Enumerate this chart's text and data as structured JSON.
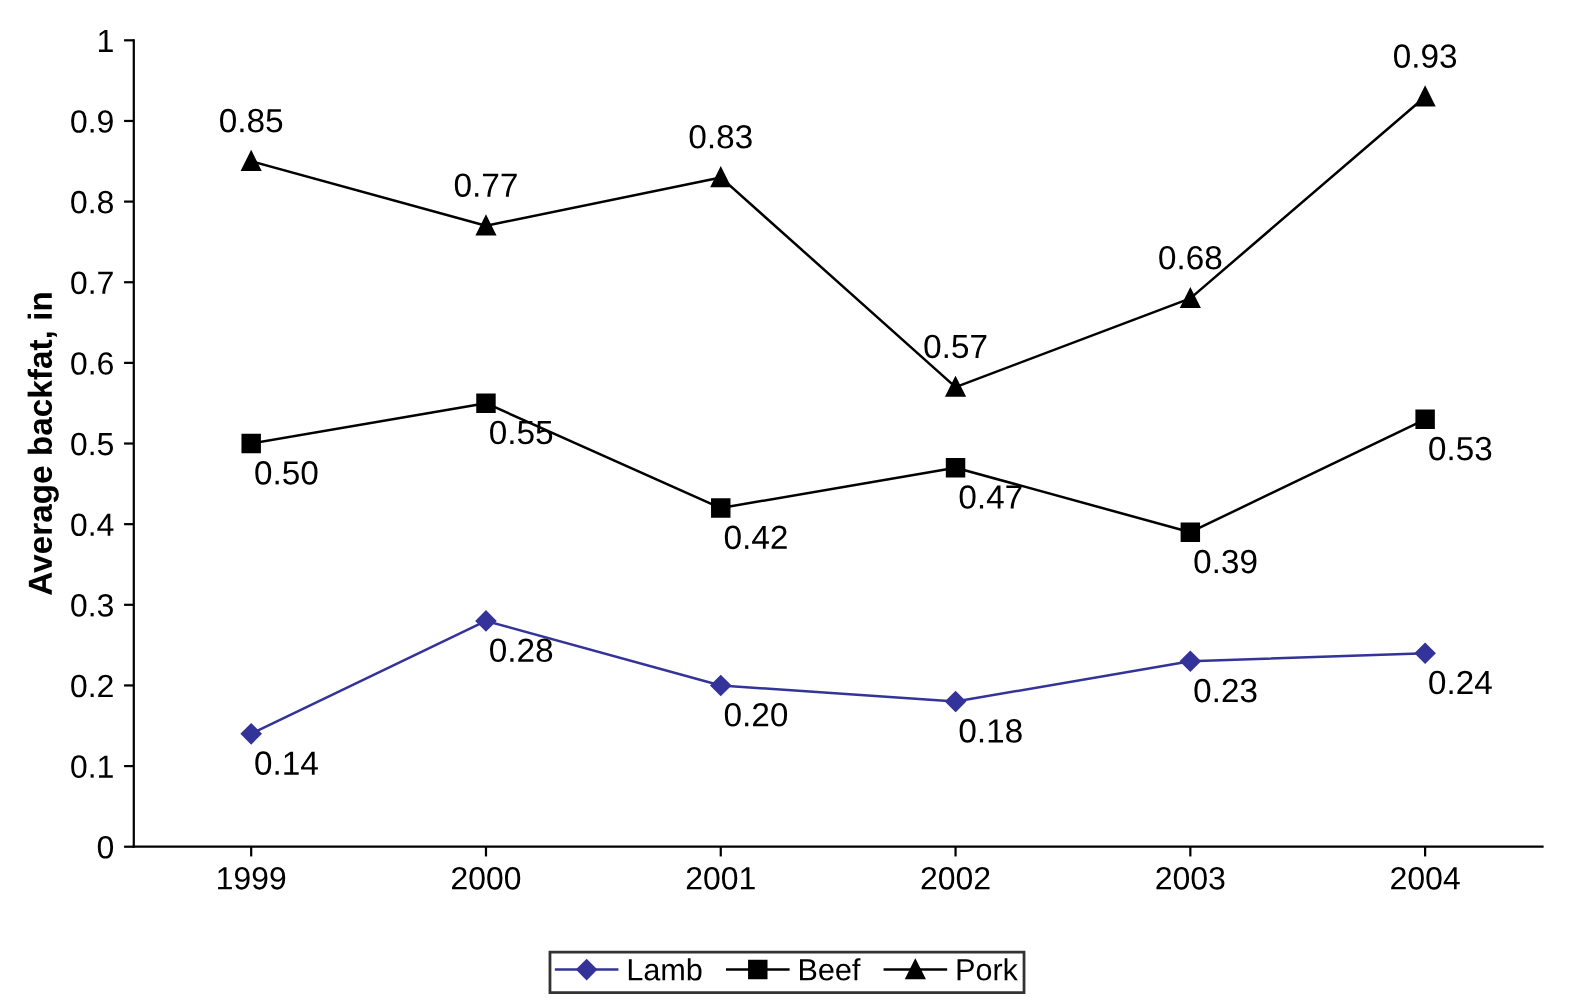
{
  "chart_data": {
    "type": "line",
    "ylabel": "Average backfat, in",
    "categories": [
      "1999",
      "2000",
      "2001",
      "2002",
      "2003",
      "2004"
    ],
    "series": [
      {
        "name": "Lamb",
        "color": "#333399",
        "marker": "diamond",
        "values": [
          0.14,
          0.28,
          0.2,
          0.18,
          0.23,
          0.24
        ],
        "value_labels": [
          "0.14",
          "0.28",
          "0.20",
          "0.18",
          "0.23",
          "0.24"
        ]
      },
      {
        "name": "Beef",
        "color": "#000000",
        "marker": "square",
        "values": [
          0.5,
          0.55,
          0.42,
          0.47,
          0.39,
          0.53
        ],
        "value_labels": [
          "0.50",
          "0.55",
          "0.42",
          "0.47",
          "0.39",
          "0.53"
        ]
      },
      {
        "name": "Pork",
        "color": "#000000",
        "marker": "triangle",
        "values": [
          0.85,
          0.77,
          0.83,
          0.57,
          0.68,
          0.93
        ],
        "value_labels": [
          "0.85",
          "0.77",
          "0.83",
          "0.57",
          "0.68",
          "0.93"
        ]
      }
    ],
    "ylim": [
      0,
      1
    ],
    "yticks": [
      0,
      0.1,
      0.2,
      0.3,
      0.4,
      0.5,
      0.6,
      0.7,
      0.8,
      0.9,
      1
    ],
    "grid": false,
    "legend": "bottom",
    "line_style": "solid"
  }
}
